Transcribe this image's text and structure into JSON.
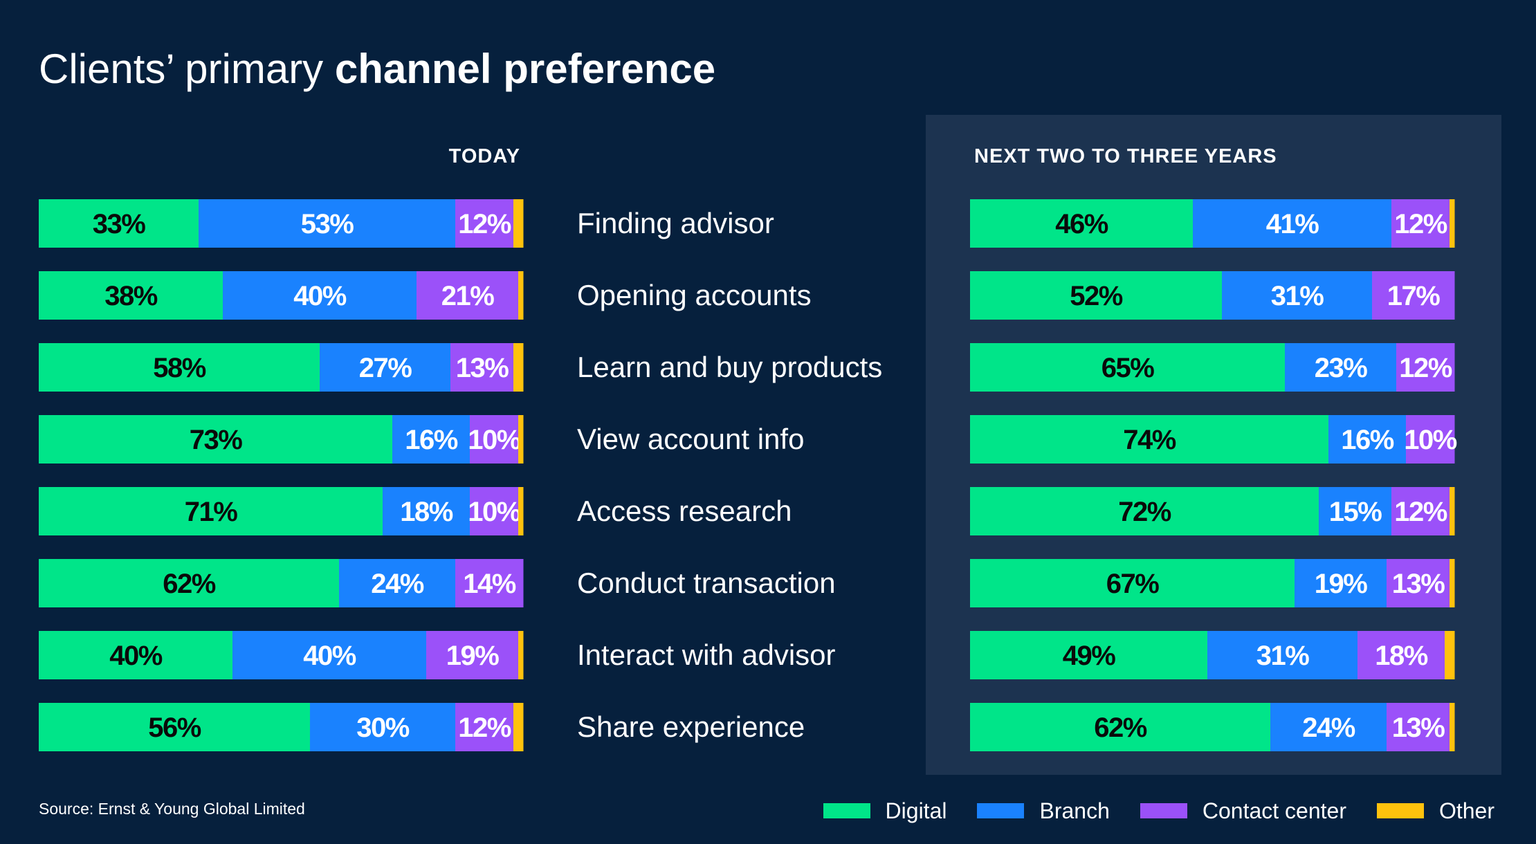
{
  "title": {
    "light": "Clients’ primary",
    "bold": "channel preference"
  },
  "source": "Source: Ernst & Young Global Limited",
  "colors": {
    "Digital": "#00e589",
    "Branch": "#1a82fe",
    "Contact center": "#9b51f9",
    "Other": "#ffc20d"
  },
  "legend": [
    {
      "label": "Digital",
      "color": "#00e589"
    },
    {
      "label": "Branch",
      "color": "#1a82fe"
    },
    {
      "label": "Contact center",
      "color": "#9b51f9"
    },
    {
      "label": "Other",
      "color": "#ffc20d"
    }
  ],
  "chart_data": [
    {
      "type": "bar",
      "orientation": "horizontal",
      "stacked": true,
      "title": "TODAY",
      "categories": [
        "Finding advisor",
        "Opening accounts",
        "Learn and buy products",
        "View account info",
        "Access research",
        "Conduct transaction",
        "Interact with advisor",
        "Share experience"
      ],
      "series": [
        {
          "name": "Digital",
          "values": [
            33,
            38,
            58,
            73,
            71,
            62,
            40,
            56
          ]
        },
        {
          "name": "Branch",
          "values": [
            53,
            40,
            27,
            16,
            18,
            24,
            40,
            30
          ]
        },
        {
          "name": "Contact center",
          "values": [
            12,
            21,
            13,
            10,
            10,
            14,
            19,
            12
          ]
        },
        {
          "name": "Other",
          "values": [
            2,
            1,
            2,
            1,
            1,
            0,
            1,
            2
          ]
        }
      ],
      "xlim": [
        0,
        100
      ],
      "grid": false,
      "legend_position": "bottom-right"
    },
    {
      "type": "bar",
      "orientation": "horizontal",
      "stacked": true,
      "title": "NEXT TWO TO THREE YEARS",
      "categories": [
        "Finding advisor",
        "Opening accounts",
        "Learn and buy products",
        "View account info",
        "Access research",
        "Conduct transaction",
        "Interact with advisor",
        "Share experience"
      ],
      "series": [
        {
          "name": "Digital",
          "values": [
            46,
            52,
            65,
            74,
            72,
            67,
            49,
            62
          ]
        },
        {
          "name": "Branch",
          "values": [
            41,
            31,
            23,
            16,
            15,
            19,
            31,
            24
          ]
        },
        {
          "name": "Contact center",
          "values": [
            12,
            17,
            12,
            10,
            12,
            13,
            18,
            13
          ]
        },
        {
          "name": "Other",
          "values": [
            1,
            0,
            0,
            0,
            1,
            1,
            2,
            1
          ]
        }
      ],
      "xlim": [
        0,
        100
      ],
      "grid": false,
      "legend_position": "bottom-right"
    }
  ]
}
